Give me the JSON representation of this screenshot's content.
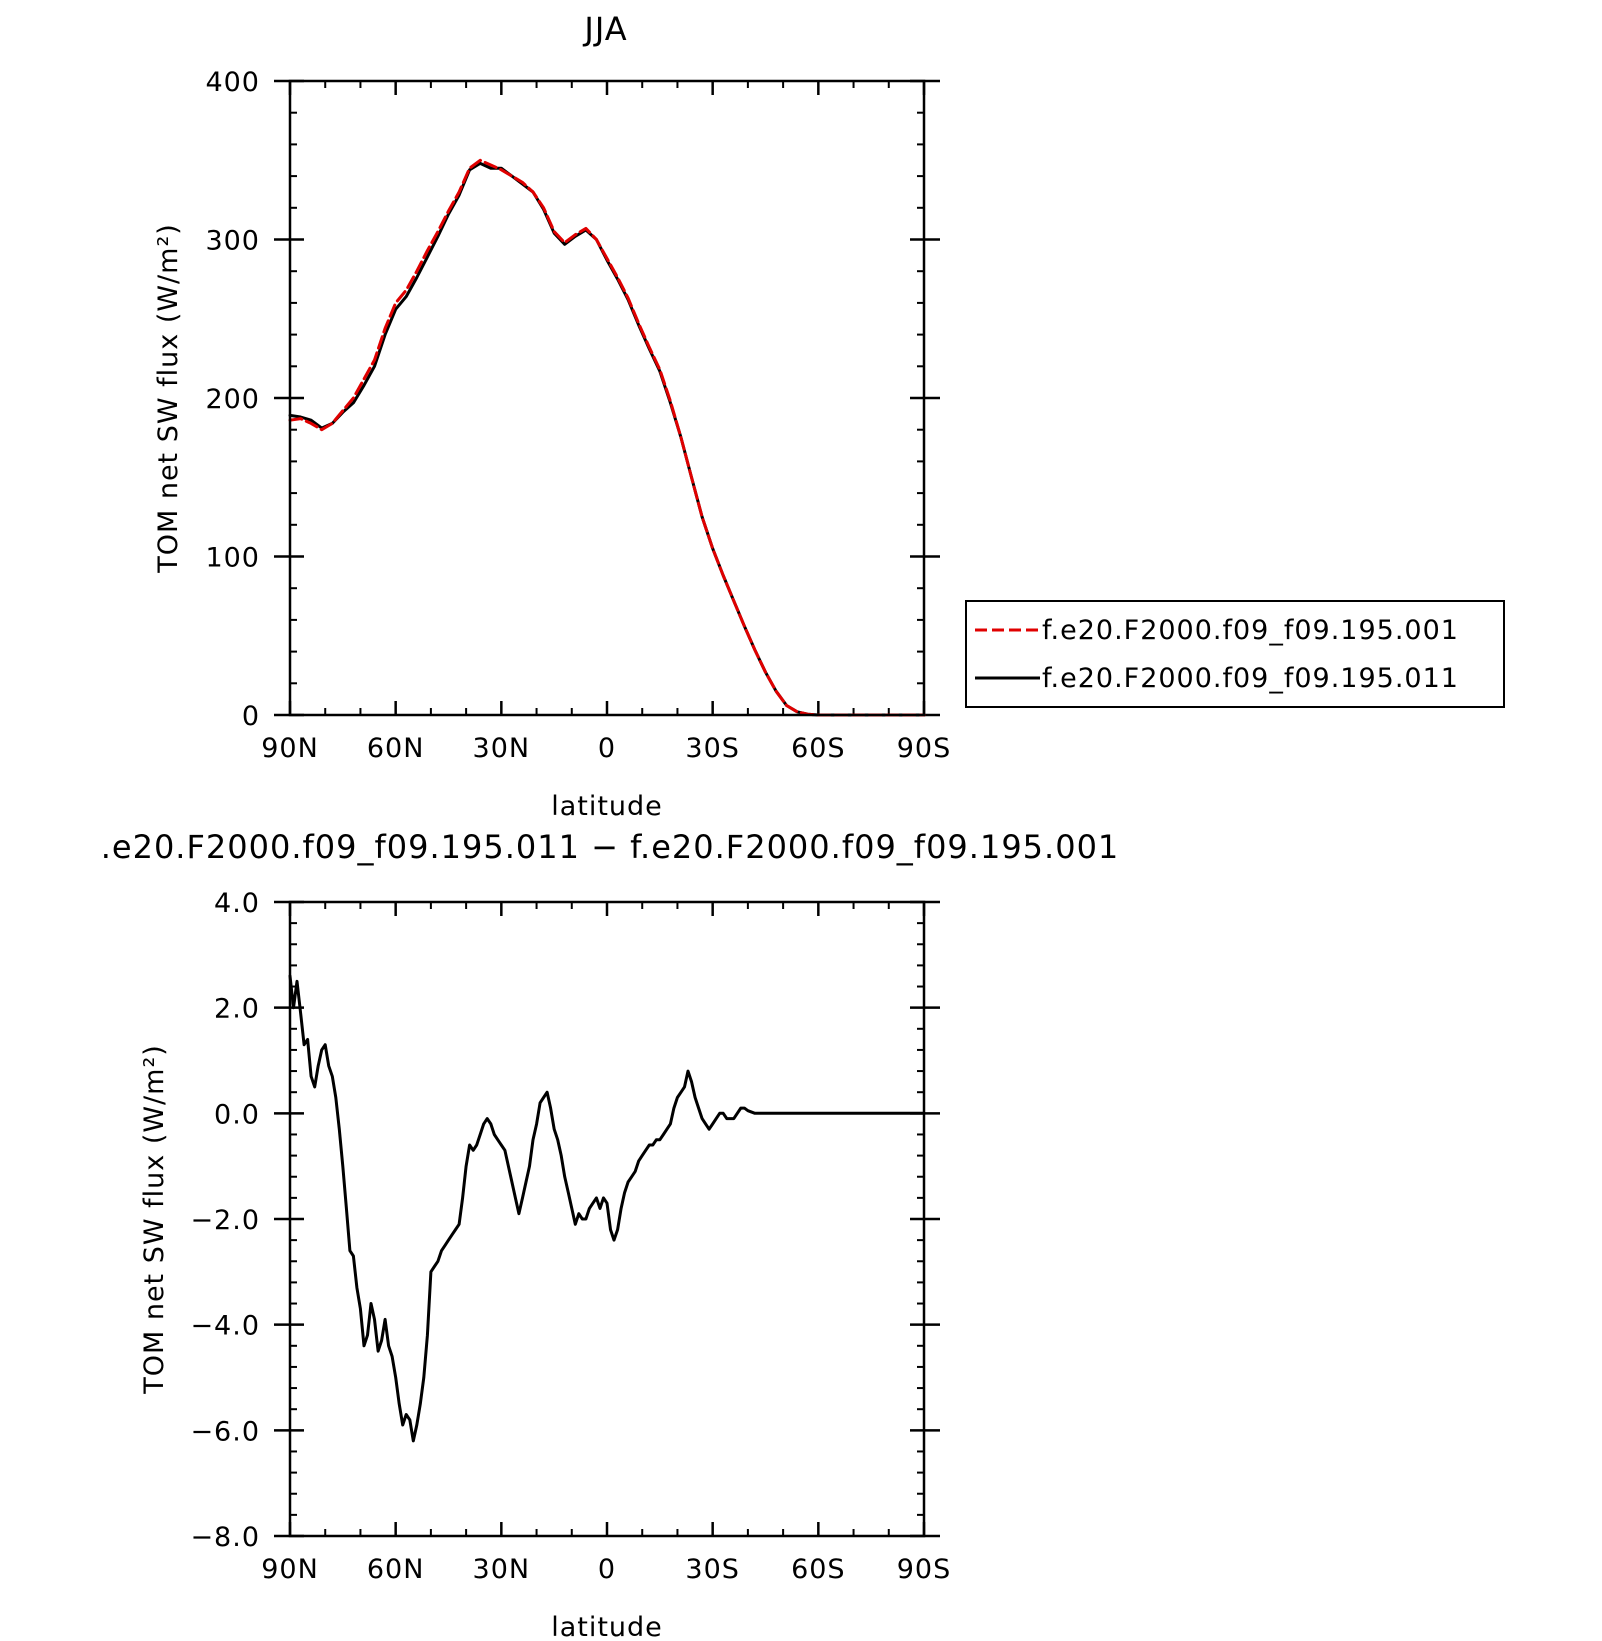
{
  "chart_data": [
    {
      "type": "line",
      "title": "JJA",
      "xlabel": "latitude",
      "ylabel": "TOM net SW flux (W/m²)",
      "xlim": [
        90,
        -90
      ],
      "ylim": [
        0,
        400
      ],
      "x_ticks": [
        90,
        60,
        30,
        0,
        -30,
        -60,
        -90
      ],
      "x_tick_labels": [
        "90N",
        "60N",
        "30N",
        "0",
        "30S",
        "60S",
        "90S"
      ],
      "y_ticks": [
        0,
        100,
        200,
        300,
        400
      ],
      "y_tick_labels": [
        "0",
        "100",
        "200",
        "300",
        "400"
      ],
      "legend": "right",
      "series": [
        {
          "name": "f.e20.F2000.f09_f09.195.001",
          "color": "#e00000",
          "dash": "dashed",
          "x": [
            90,
            87,
            84,
            81,
            78,
            75,
            72,
            69,
            66,
            63,
            60,
            57,
            54,
            51,
            48,
            45,
            42,
            39,
            36,
            33,
            30,
            27,
            24,
            21,
            18,
            15,
            12,
            9,
            6,
            3,
            0,
            -3,
            -6,
            -9,
            -12,
            -15,
            -18,
            -21,
            -24,
            -27,
            -30,
            -33,
            -36,
            -39,
            -42,
            -45,
            -48,
            -51,
            -54,
            -57,
            -60,
            -63,
            -66,
            -69,
            -72,
            -75,
            -78,
            -81,
            -84,
            -87,
            -90
          ],
          "y": [
            186,
            187,
            184,
            180,
            184,
            192,
            200,
            212,
            224,
            244,
            260,
            268,
            280,
            293,
            305,
            318,
            330,
            345,
            350,
            347,
            344,
            340,
            336,
            330,
            320,
            305,
            298,
            303,
            307,
            300,
            288,
            276,
            263,
            247,
            232,
            218,
            198,
            175,
            150,
            125,
            105,
            88,
            72,
            56,
            41,
            27,
            15,
            6,
            2,
            0.5,
            0,
            0,
            0,
            0,
            0,
            0,
            0,
            0,
            0,
            0,
            0
          ]
        },
        {
          "name": "f.e20.F2000.f09_f09.195.011",
          "color": "#000000",
          "dash": "solid",
          "x": [
            90,
            87,
            84,
            81,
            78,
            75,
            72,
            69,
            66,
            63,
            60,
            57,
            54,
            51,
            48,
            45,
            42,
            39,
            36,
            33,
            30,
            27,
            24,
            21,
            18,
            15,
            12,
            9,
            6,
            3,
            0,
            -3,
            -6,
            -9,
            -12,
            -15,
            -18,
            -21,
            -24,
            -27,
            -30,
            -33,
            -36,
            -39,
            -42,
            -45,
            -48,
            -51,
            -54,
            -57,
            -60,
            -63,
            -66,
            -69,
            -72,
            -75,
            -78,
            -81,
            -84,
            -87,
            -90
          ],
          "y": [
            189,
            188,
            186,
            181,
            184,
            191,
            197,
            208,
            220,
            240,
            256,
            264,
            276,
            289,
            302,
            316,
            328,
            344,
            348,
            345,
            345,
            340,
            335,
            330,
            319,
            304,
            297,
            302,
            306,
            300,
            287,
            275,
            262,
            246,
            231,
            217,
            197,
            175,
            150,
            125,
            105,
            88,
            72,
            56,
            41,
            27,
            15,
            6,
            2,
            0.5,
            0,
            0,
            0,
            0,
            0,
            0,
            0,
            0,
            0,
            0,
            0
          ]
        }
      ]
    },
    {
      "type": "line",
      "title": ".e20.F2000.f09_f09.195.011 − f.e20.F2000.f09_f09.195.001",
      "xlabel": "latitude",
      "ylabel": "TOM net SW flux (W/m²)",
      "xlim": [
        90,
        -90
      ],
      "ylim": [
        -8,
        4
      ],
      "x_ticks": [
        90,
        60,
        30,
        0,
        -30,
        -60,
        -90
      ],
      "x_tick_labels": [
        "90N",
        "60N",
        "30N",
        "0",
        "30S",
        "60S",
        "90S"
      ],
      "y_ticks": [
        -8,
        -6,
        -4,
        -2,
        0,
        2,
        4
      ],
      "y_tick_labels": [
        "−8.0",
        "−6.0",
        "−4.0",
        "−2.0",
        "0.0",
        "2.0",
        "4.0"
      ],
      "series": [
        {
          "color": "#000000",
          "dash": "solid",
          "x": [
            90,
            89,
            88,
            87,
            86,
            85,
            84,
            83,
            82,
            81,
            80,
            79,
            78,
            77,
            76,
            75,
            74,
            73,
            72,
            71,
            70,
            69,
            68,
            67,
            66,
            65,
            64,
            63,
            62,
            61,
            60,
            59,
            58,
            57,
            56,
            55,
            54,
            53,
            52,
            51,
            50,
            49,
            48,
            47,
            46,
            45,
            44,
            43,
            42,
            41,
            40,
            39,
            38,
            37,
            36,
            35,
            34,
            33,
            32,
            31,
            30,
            29,
            28,
            27,
            26,
            25,
            24,
            23,
            22,
            21,
            20,
            19,
            18,
            17,
            16,
            15,
            14,
            13,
            12,
            11,
            10,
            9,
            8,
            7,
            6,
            5,
            4,
            3,
            2,
            1,
            0,
            -1,
            -2,
            -3,
            -4,
            -5,
            -6,
            -7,
            -8,
            -9,
            -10,
            -11,
            -12,
            -13,
            -14,
            -15,
            -16,
            -17,
            -18,
            -19,
            -20,
            -21,
            -22,
            -23,
            -24,
            -25,
            -26,
            -27,
            -28,
            -29,
            -30,
            -31,
            -32,
            -33,
            -34,
            -35,
            -36,
            -37,
            -38,
            -39,
            -40,
            -42,
            -44,
            -46,
            -48,
            -50,
            -52,
            -54,
            -56,
            -58,
            -60,
            -62,
            -64,
            -66,
            -68,
            -70,
            -74,
            -78,
            -82,
            -86,
            -90
          ],
          "y": [
            2.6,
            2.0,
            2.5,
            1.9,
            1.3,
            1.4,
            0.7,
            0.5,
            0.9,
            1.2,
            1.3,
            0.9,
            0.7,
            0.3,
            -0.3,
            -1.0,
            -1.8,
            -2.6,
            -2.7,
            -3.3,
            -3.7,
            -4.4,
            -4.2,
            -3.6,
            -3.9,
            -4.5,
            -4.3,
            -3.9,
            -4.4,
            -4.6,
            -5.0,
            -5.5,
            -5.9,
            -5.7,
            -5.8,
            -6.2,
            -5.9,
            -5.5,
            -5.0,
            -4.2,
            -3.0,
            -2.9,
            -2.8,
            -2.6,
            -2.5,
            -2.4,
            -2.3,
            -2.2,
            -2.1,
            -1.6,
            -1.0,
            -0.6,
            -0.7,
            -0.6,
            -0.4,
            -0.2,
            -0.1,
            -0.2,
            -0.4,
            -0.5,
            -0.6,
            -0.7,
            -1.0,
            -1.3,
            -1.6,
            -1.9,
            -1.6,
            -1.3,
            -1.0,
            -0.5,
            -0.2,
            0.2,
            0.3,
            0.4,
            0.1,
            -0.3,
            -0.5,
            -0.8,
            -1.2,
            -1.5,
            -1.8,
            -2.1,
            -1.9,
            -2.0,
            -2.0,
            -1.8,
            -1.7,
            -1.6,
            -1.8,
            -1.6,
            -1.7,
            -2.2,
            -2.4,
            -2.2,
            -1.8,
            -1.5,
            -1.3,
            -1.2,
            -1.1,
            -0.9,
            -0.8,
            -0.7,
            -0.6,
            -0.6,
            -0.5,
            -0.5,
            -0.4,
            -0.3,
            -0.2,
            0.1,
            0.3,
            0.4,
            0.5,
            0.8,
            0.6,
            0.3,
            0.1,
            -0.1,
            -0.2,
            -0.3,
            -0.2,
            -0.1,
            0.0,
            0.0,
            -0.1,
            -0.1,
            -0.1,
            0.0,
            0.1,
            0.1,
            0.05,
            0.0,
            0.0,
            0.0,
            0.0,
            0.0,
            0.0,
            0.0,
            0.0,
            0.0,
            0.0,
            0.0,
            0.0,
            0.0,
            0.0,
            0.0,
            0.0,
            0.0,
            0.0,
            0.0,
            0.0
          ]
        }
      ]
    }
  ]
}
